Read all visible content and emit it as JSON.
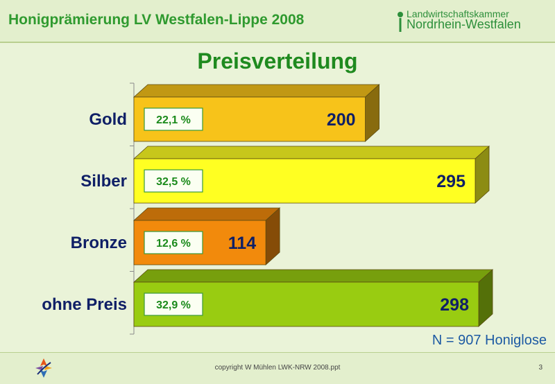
{
  "header": {
    "title": "Honigprämierung LV Westfalen-Lippe 2008",
    "logo_line1": "Landwirtschaftskammer",
    "logo_line2": "Nordrhein-Westfalen"
  },
  "chart_data": {
    "type": "bar",
    "orientation": "horizontal",
    "title": "Preisverteilung",
    "categories": [
      "Gold",
      "Silber",
      "Bronze",
      "ohne Preis"
    ],
    "values": [
      200,
      295,
      114,
      298
    ],
    "percentages": [
      "22,1 %",
      "32,5 %",
      "12,6 %",
      "32,9 %"
    ],
    "value_labels": [
      "200",
      "295",
      "114",
      "298"
    ],
    "colors": [
      "#f7c31a",
      "#ffff22",
      "#f28a0c",
      "#99cc11"
    ],
    "note": "N = 907 Honiglose",
    "grid": false,
    "legend": "none"
  },
  "footer": {
    "copyright": "copyright W Mühlen LWK-NRW 2008.ppt",
    "page": "3"
  }
}
